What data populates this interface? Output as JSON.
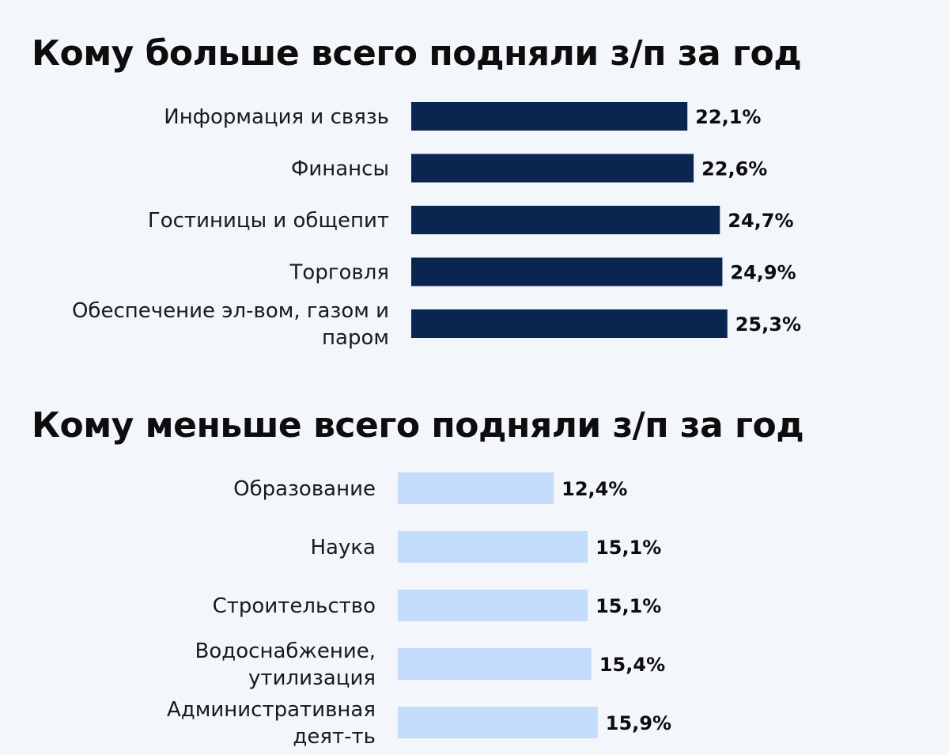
{
  "chart_data": [
    {
      "type": "bar",
      "orientation": "horizontal",
      "title": "Кому больше всего подняли з/п за год",
      "unit": "%",
      "color": "#0b2551",
      "categories": [
        [
          "Информация и связь"
        ],
        [
          "Финансы"
        ],
        [
          "Гостиницы и общепит"
        ],
        [
          "Торговля"
        ],
        [
          "Обеспечение эл-вом, газом и",
          "паром"
        ]
      ],
      "values": [
        22.1,
        22.6,
        24.7,
        24.9,
        25.3
      ],
      "value_labels": [
        "22,1%",
        "22,6%",
        "24,7%",
        "24,9%",
        "25,3%"
      ]
    },
    {
      "type": "bar",
      "orientation": "horizontal",
      "title": "Кому меньше всего подняли з/п за год",
      "unit": "%",
      "color": "#c3dcfb",
      "categories": [
        [
          "Образование"
        ],
        [
          "Наука"
        ],
        [
          "Строительство"
        ],
        [
          "Водоснабжение,",
          "утилизация"
        ],
        [
          "Административная",
          "деят-ть"
        ]
      ],
      "values": [
        12.4,
        15.1,
        15.1,
        15.4,
        15.9
      ],
      "value_labels": [
        "12,4%",
        "15,1%",
        "15,1%",
        "15,4%",
        "15,9%"
      ]
    }
  ]
}
